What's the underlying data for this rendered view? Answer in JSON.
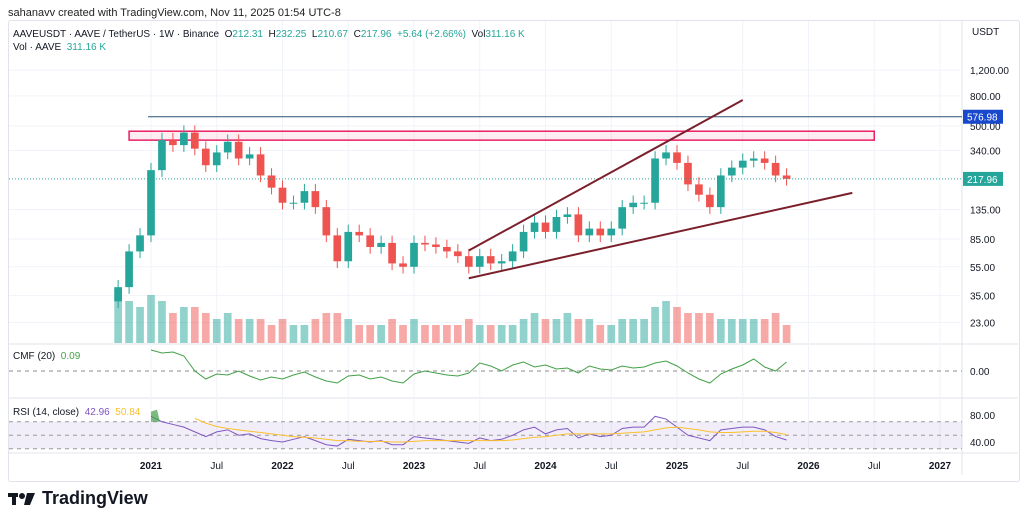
{
  "credit": "sahanavv created with TradingView.com, Nov 11, 2025 01:54 UTC-8",
  "legend": {
    "symbol": "AAVEUSDT · AAVE / TetherUS · 1W · Binance",
    "o_label": "O",
    "o": "212.31",
    "h_label": "H",
    "h": "232.25",
    "l_label": "L",
    "l": "210.67",
    "c_label": "C",
    "c": "217.96",
    "change": "+5.64 (+2.66%)",
    "vol_label": "Vol",
    "vol": "311.16 K"
  },
  "volume_legend": {
    "label": "Vol · AAVE",
    "value": "311.16 K"
  },
  "currency": "USDT",
  "colors": {
    "up": "#26a69a",
    "down": "#ef5350",
    "line": "#2a5279",
    "rect": "#e91e63",
    "trend": "#7b1f2a",
    "price_tag": "#26a69a",
    "level_tag": "#1848cc",
    "cmf": "#43a047",
    "rsi": "#7e57c2",
    "rsi_ma": "#fbc02d"
  },
  "brand": "TradingView",
  "chart_data": {
    "type": "candlestick",
    "y_scale": "log",
    "yticks": [
      "1,200.00",
      "800.00",
      "500.00",
      "340.00",
      "135.00",
      "85.00",
      "55.00",
      "35.00",
      "23.00"
    ],
    "ytick_values": [
      1200,
      800,
      500,
      340,
      135,
      85,
      55,
      35,
      23
    ],
    "xticks": [
      "2021",
      "Jul",
      "2022",
      "Jul",
      "2023",
      "Jul",
      "2024",
      "Jul",
      "2025",
      "Jul",
      "2026",
      "Jul",
      "2027"
    ],
    "xtick_dates": [
      "2021-01",
      "2021-07",
      "2022-01",
      "2022-07",
      "2023-01",
      "2023-07",
      "2024-01",
      "2024-07",
      "2025-01",
      "2025-07",
      "2026-01",
      "2026-07",
      "2027-01"
    ],
    "last_price": "217.96",
    "level_line": {
      "value": "576.98",
      "from": "2021-01"
    },
    "zone": {
      "low": 400,
      "high": 460,
      "from": "2020-11",
      "to": "2026-07"
    },
    "trendlines": [
      {
        "from": [
          "2023-06",
          71
        ],
        "to": [
          "2025-07",
          750
        ]
      },
      {
        "from": [
          "2023-06",
          46
        ],
        "to": [
          "2026-05",
          175
        ]
      }
    ],
    "dates": [
      "2020-10",
      "2020-11",
      "2020-12",
      "2021-01",
      "2021-02",
      "2021-03",
      "2021-04",
      "2021-05",
      "2021-06",
      "2021-07",
      "2021-08",
      "2021-09",
      "2021-10",
      "2021-11",
      "2021-12",
      "2022-01",
      "2022-02",
      "2022-03",
      "2022-04",
      "2022-05",
      "2022-06",
      "2022-07",
      "2022-08",
      "2022-09",
      "2022-10",
      "2022-11",
      "2022-12",
      "2023-01",
      "2023-02",
      "2023-03",
      "2023-04",
      "2023-05",
      "2023-06",
      "2023-07",
      "2023-08",
      "2023-09",
      "2023-10",
      "2023-11",
      "2023-12",
      "2024-01",
      "2024-02",
      "2024-03",
      "2024-04",
      "2024-05",
      "2024-06",
      "2024-07",
      "2024-08",
      "2024-09",
      "2024-10",
      "2024-11",
      "2024-12",
      "2025-01",
      "2025-02",
      "2025-03",
      "2025-04",
      "2025-05",
      "2025-06",
      "2025-07",
      "2025-08",
      "2025-09",
      "2025-10",
      "2025-11"
    ],
    "close": [
      40,
      70,
      90,
      250,
      400,
      370,
      450,
      350,
      270,
      330,
      390,
      300,
      320,
      230,
      190,
      150,
      150,
      180,
      140,
      90,
      60,
      95,
      90,
      75,
      80,
      58,
      55,
      80,
      78,
      75,
      70,
      65,
      55,
      65,
      58,
      60,
      70,
      95,
      110,
      95,
      120,
      125,
      90,
      100,
      90,
      100,
      140,
      150,
      150,
      300,
      330,
      280,
      200,
      170,
      140,
      230,
      260,
      290,
      300,
      280,
      230,
      218
    ],
    "volume": [
      0.9,
      0.7,
      0.6,
      0.8,
      0.7,
      0.5,
      0.6,
      0.6,
      0.5,
      0.4,
      0.5,
      0.4,
      0.4,
      0.4,
      0.3,
      0.4,
      0.3,
      0.3,
      0.4,
      0.5,
      0.5,
      0.4,
      0.3,
      0.3,
      0.3,
      0.4,
      0.3,
      0.4,
      0.3,
      0.3,
      0.3,
      0.3,
      0.4,
      0.3,
      0.3,
      0.3,
      0.3,
      0.4,
      0.5,
      0.4,
      0.4,
      0.5,
      0.4,
      0.4,
      0.3,
      0.3,
      0.4,
      0.4,
      0.4,
      0.6,
      0.7,
      0.6,
      0.5,
      0.5,
      0.5,
      0.4,
      0.4,
      0.4,
      0.4,
      0.4,
      0.5,
      0.3
    ],
    "cmf": {
      "label": "CMF (20)",
      "value": "0.09",
      "zero_tick": "0.00",
      "values": [
        null,
        null,
        null,
        0.21,
        0.18,
        0.19,
        0.15,
        0.0,
        -0.08,
        -0.03,
        -0.04,
        0.0,
        -0.05,
        -0.09,
        -0.06,
        -0.08,
        -0.04,
        -0.01,
        -0.06,
        -0.1,
        -0.12,
        -0.05,
        -0.04,
        -0.08,
        -0.06,
        -0.1,
        -0.12,
        -0.03,
        0.0,
        -0.02,
        -0.04,
        -0.05,
        -0.02,
        0.08,
        0.05,
        0.0,
        0.06,
        0.09,
        0.04,
        0.06,
        0.02,
        0.03,
        -0.02,
        0.05,
        0.02,
        0.01,
        0.05,
        0.03,
        0.04,
        0.08,
        0.1,
        0.05,
        -0.02,
        -0.08,
        -0.12,
        -0.03,
        0.02,
        0.06,
        0.12,
        0.04,
        0.0,
        0.09
      ]
    },
    "rsi": {
      "label": "RSI (14, close)",
      "value": "42.96",
      "ma_value": "50.84",
      "ticks": [
        "80.00",
        "40.00"
      ],
      "values": [
        null,
        null,
        null,
        92,
        70,
        66,
        62,
        55,
        48,
        55,
        58,
        50,
        52,
        45,
        42,
        40,
        44,
        48,
        42,
        36,
        34,
        44,
        42,
        40,
        42,
        36,
        36,
        48,
        46,
        44,
        42,
        40,
        38,
        46,
        42,
        44,
        50,
        58,
        62,
        52,
        58,
        60,
        46,
        52,
        48,
        50,
        60,
        62,
        62,
        78,
        74,
        62,
        50,
        46,
        42,
        58,
        60,
        62,
        62,
        58,
        48,
        43
      ],
      "ma": [
        null,
        null,
        null,
        null,
        null,
        null,
        null,
        75,
        68,
        63,
        60,
        58,
        56,
        54,
        52,
        50,
        48,
        47,
        46,
        44,
        42,
        42,
        41,
        41,
        41,
        40,
        40,
        41,
        42,
        42,
        42,
        42,
        42,
        42,
        42,
        42,
        43,
        45,
        47,
        48,
        50,
        52,
        52,
        52,
        52,
        52,
        53,
        54,
        55,
        58,
        61,
        62,
        60,
        58,
        55,
        54,
        54,
        55,
        56,
        56,
        54,
        51
      ]
    }
  }
}
